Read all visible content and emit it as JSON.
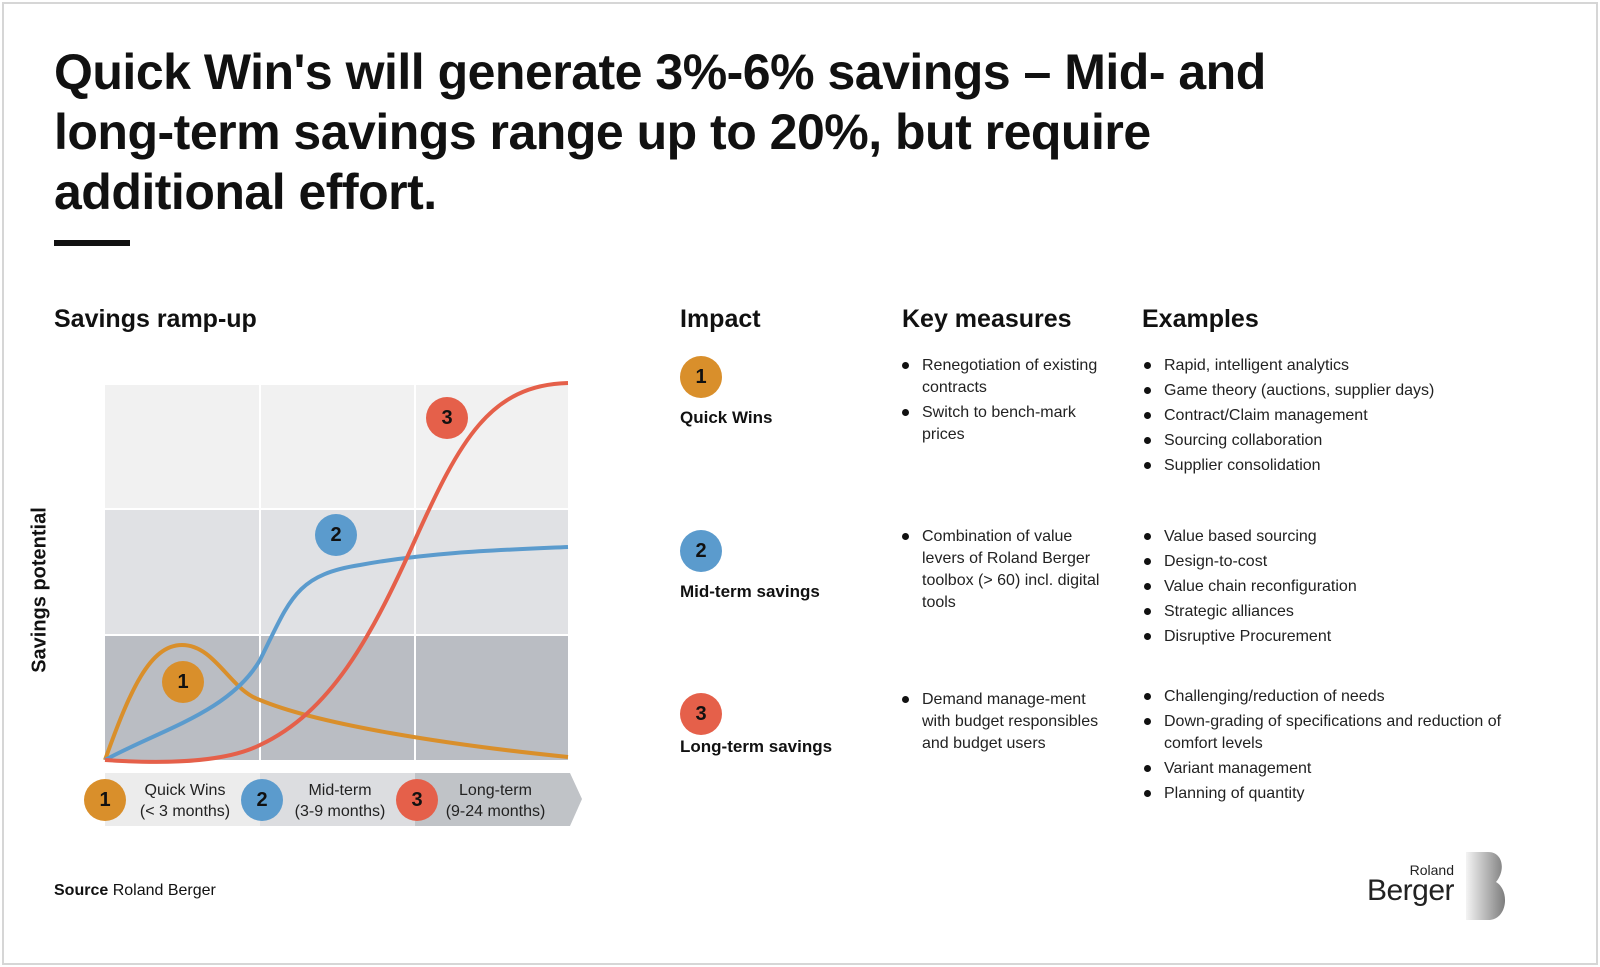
{
  "title": "Quick Win's will generate 3%-6% savings – Mid- and long-term savings range up to 20%, but require additional effort.",
  "chart": {
    "title": "Savings ramp-up",
    "ylabel": "Savings potential",
    "phases": [
      {
        "num": "1",
        "label": "Quick Wins",
        "sub": "(< 3 months)",
        "color": "#d98f2b"
      },
      {
        "num": "2",
        "label": "Mid-term",
        "sub": "(3-9 months)",
        "color": "#5b9bcd"
      },
      {
        "num": "3",
        "label": "Long-term",
        "sub": "(9-24 months)",
        "color": "#e5604a"
      }
    ]
  },
  "table": {
    "headers": [
      "Impact",
      "Key measures",
      "Examples"
    ],
    "rows": [
      {
        "num": "1",
        "title": "Quick Wins",
        "measures": [
          "Renegotiation of existing contracts",
          "Switch to bench-mark prices"
        ],
        "examples": [
          "Rapid, intelligent analytics",
          "Game theory (auctions, supplier days)",
          "Contract/Claim management",
          "Sourcing collaboration",
          "Supplier consolidation"
        ]
      },
      {
        "num": "2",
        "title": "Mid-term savings",
        "measures": [
          "Combination of value levers of Roland Berger toolbox (> 60) incl. digital tools"
        ],
        "examples": [
          "Value based sourcing",
          "Design-to-cost",
          "Value chain reconfiguration",
          "Strategic alliances",
          "Disruptive Procurement"
        ]
      },
      {
        "num": "3",
        "title": "Long-term savings",
        "measures": [
          "Demand manage-ment with budget responsibles and budget users"
        ],
        "examples": [
          "Challenging/reduction of needs",
          "Down-grading of specifications and reduction of comfort levels",
          "Variant management",
          "Planning of quantity"
        ]
      }
    ]
  },
  "source": {
    "label": "Source",
    "value": "Roland Berger"
  },
  "logo": {
    "line1": "Roland",
    "line2": "Berger"
  }
}
